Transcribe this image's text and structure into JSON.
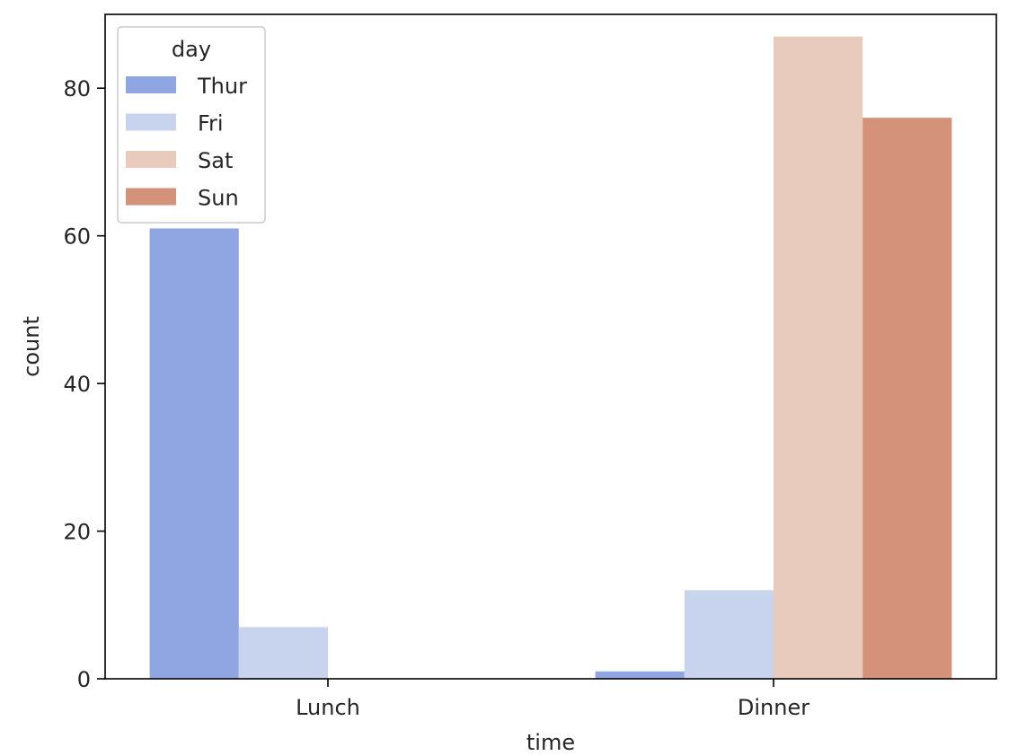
{
  "chart_data": {
    "type": "bar",
    "title": "",
    "xlabel": "time",
    "ylabel": "count",
    "categories": [
      "Lunch",
      "Dinner"
    ],
    "ylim": [
      0,
      90
    ],
    "yticks": [
      0,
      20,
      40,
      60,
      80
    ],
    "grid": false,
    "legend": {
      "title": "day",
      "placement": "top-left"
    },
    "series": [
      {
        "name": "Thur",
        "color": "#8fa6e2",
        "values": [
          61,
          1
        ]
      },
      {
        "name": "Fri",
        "color": "#c8d3ed",
        "values": [
          7,
          12
        ]
      },
      {
        "name": "Sat",
        "color": "#e8cbbc",
        "values": [
          0,
          87
        ]
      },
      {
        "name": "Sun",
        "color": "#d39279",
        "values": [
          0,
          76
        ]
      }
    ]
  }
}
